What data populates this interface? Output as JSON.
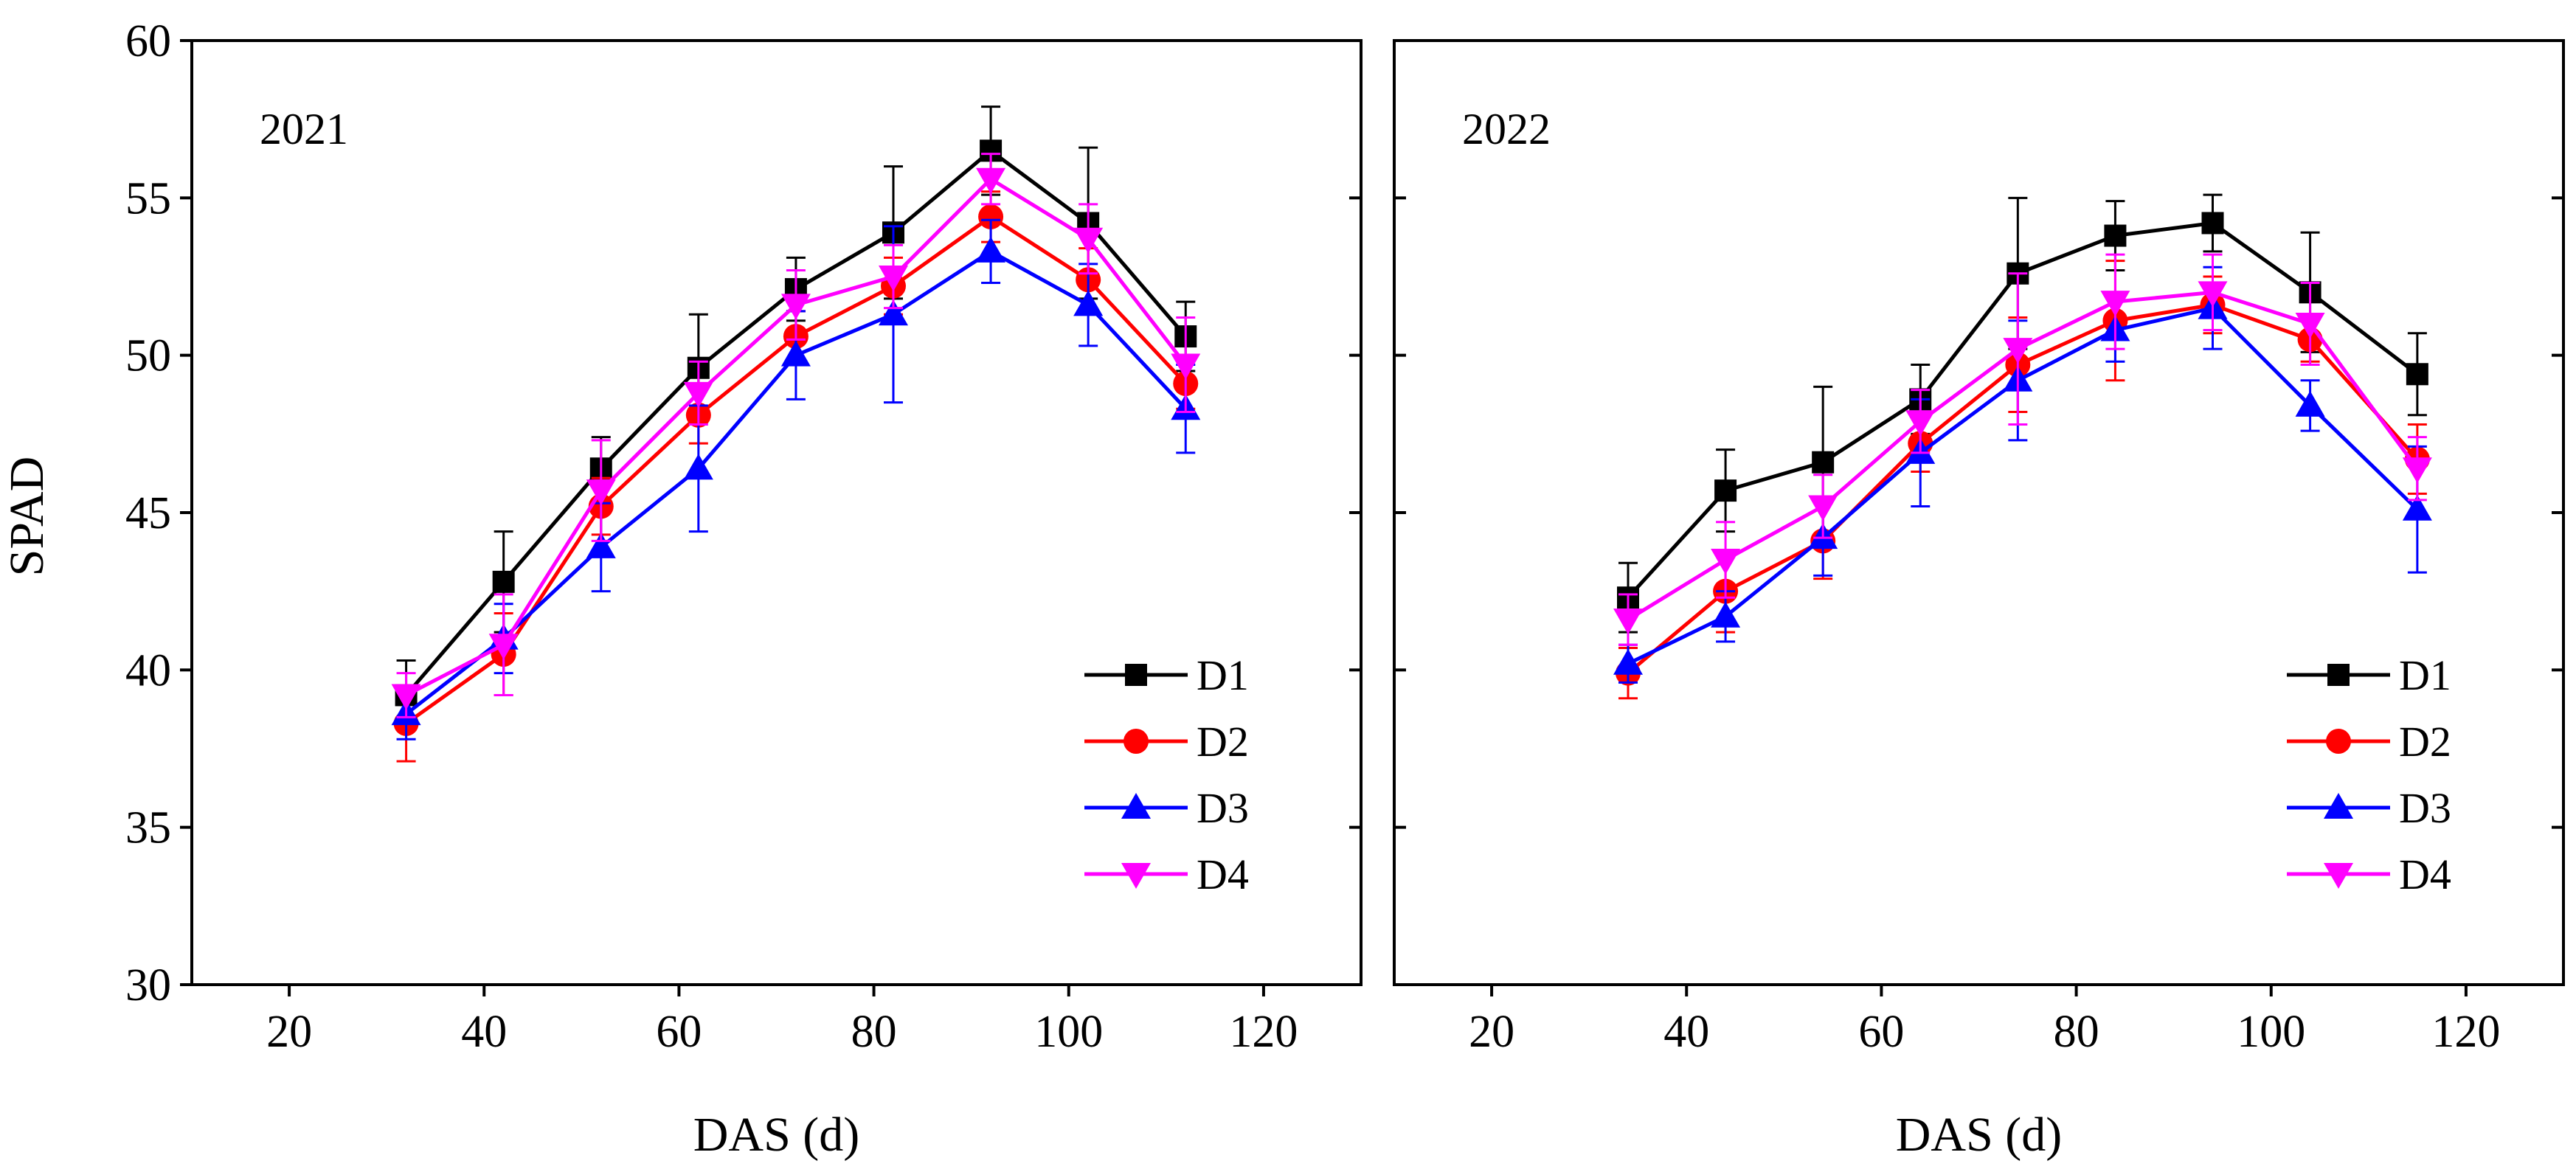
{
  "colors": {
    "D1": "#000000",
    "D2": "#ff0000",
    "D3": "#0000ff",
    "D4": "#ff00ff"
  },
  "markers": {
    "D1": "square",
    "D2": "circle",
    "D3": "triangle-up",
    "D4": "triangle-down"
  },
  "chart_data": [
    {
      "type": "line",
      "panel_label": "2021",
      "xlabel": "DAS (d)",
      "ylabel": "SPAD",
      "xlim": [
        10,
        130
      ],
      "ylim": [
        30,
        60
      ],
      "xticks": [
        20,
        40,
        60,
        80,
        100,
        120
      ],
      "yticks": [
        30,
        35,
        40,
        45,
        50,
        55,
        60
      ],
      "legend_position": "bottom-right",
      "grid": false,
      "x": [
        32,
        42,
        52,
        62,
        72,
        82,
        92,
        102,
        112
      ],
      "series": [
        {
          "name": "D1",
          "values": [
            39.2,
            42.8,
            46.4,
            49.6,
            52.1,
            53.9,
            56.5,
            54.2,
            50.6
          ],
          "errors": [
            1.1,
            1.6,
            1.0,
            1.7,
            1.0,
            2.1,
            1.4,
            2.4,
            1.1
          ]
        },
        {
          "name": "D2",
          "values": [
            38.3,
            40.5,
            45.2,
            48.1,
            50.6,
            52.2,
            54.4,
            52.4,
            49.1
          ],
          "errors": [
            1.2,
            1.3,
            0.9,
            0.9,
            0.8,
            0.9,
            0.8,
            1.0,
            0.8
          ]
        },
        {
          "name": "D3",
          "values": [
            38.6,
            41.0,
            43.9,
            46.4,
            50.0,
            51.3,
            53.3,
            51.6,
            48.3
          ],
          "errors": [
            0.8,
            1.1,
            1.4,
            2.0,
            1.4,
            2.8,
            1.0,
            1.3,
            1.4
          ]
        },
        {
          "name": "D4",
          "values": [
            39.2,
            40.8,
            45.7,
            48.8,
            51.6,
            52.5,
            55.6,
            53.7,
            49.7
          ],
          "errors": [
            0.7,
            1.6,
            1.6,
            1.0,
            1.1,
            1.0,
            0.8,
            1.1,
            1.5
          ]
        }
      ]
    },
    {
      "type": "line",
      "panel_label": "2022",
      "xlabel": "DAS (d)",
      "ylabel": "",
      "xlim": [
        10,
        130
      ],
      "ylim": [
        30,
        60
      ],
      "xticks": [
        20,
        40,
        60,
        80,
        100,
        120
      ],
      "yticks": [
        30,
        35,
        40,
        45,
        50,
        55,
        60
      ],
      "legend_position": "bottom-right",
      "grid": false,
      "x": [
        34,
        44,
        54,
        64,
        74,
        84,
        94,
        104,
        115
      ],
      "series": [
        {
          "name": "D1",
          "values": [
            42.3,
            45.7,
            46.6,
            48.6,
            52.6,
            53.8,
            54.2,
            52.0,
            49.4
          ],
          "errors": [
            1.1,
            1.3,
            2.4,
            1.1,
            2.4,
            1.1,
            0.9,
            1.9,
            1.3
          ]
        },
        {
          "name": "D2",
          "values": [
            39.9,
            42.5,
            44.1,
            47.2,
            49.7,
            51.1,
            51.6,
            50.5,
            46.7
          ],
          "errors": [
            0.8,
            1.3,
            1.2,
            0.9,
            1.5,
            1.9,
            0.9,
            0.7,
            1.1
          ]
        },
        {
          "name": "D3",
          "values": [
            40.2,
            41.7,
            44.2,
            46.9,
            49.2,
            50.8,
            51.5,
            48.4,
            45.1
          ],
          "errors": [
            0.6,
            0.8,
            1.2,
            1.7,
            1.9,
            1.0,
            1.3,
            0.8,
            2.0
          ]
        },
        {
          "name": "D4",
          "values": [
            41.6,
            43.5,
            45.2,
            47.9,
            50.2,
            51.7,
            52.0,
            51.0,
            46.4
          ],
          "errors": [
            0.8,
            1.2,
            1.0,
            1.0,
            2.4,
            1.5,
            1.2,
            1.3,
            1.0
          ]
        }
      ]
    }
  ]
}
